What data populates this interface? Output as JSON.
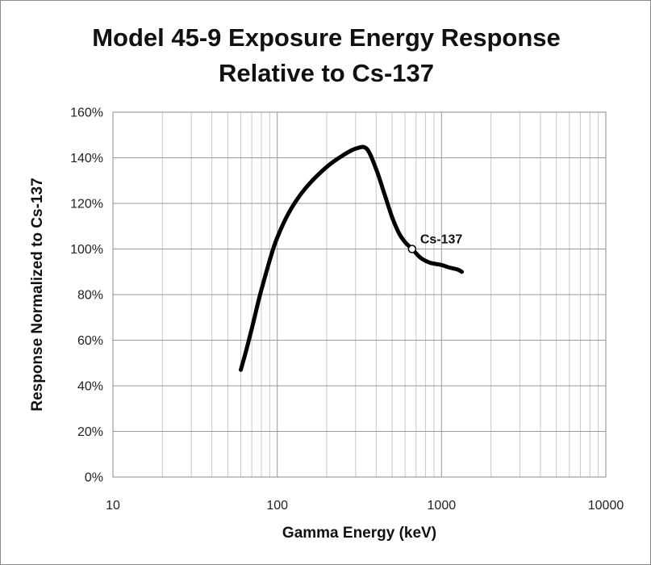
{
  "chart_data": {
    "type": "line",
    "title_lines": [
      "Model 45-9 Exposure Energy Response",
      "Relative to Cs-137"
    ],
    "xlabel": "Gamma Energy (keV)",
    "ylabel": "Response Normalized to Cs-137",
    "x_scale": "log",
    "xlim": [
      10,
      10000
    ],
    "ylim": [
      0,
      1.6
    ],
    "x_ticks": [
      {
        "value": 10,
        "label": "10"
      },
      {
        "value": 100,
        "label": "100"
      },
      {
        "value": 1000,
        "label": "1000"
      },
      {
        "value": 10000,
        "label": "10000"
      }
    ],
    "y_ticks": [
      {
        "value": 0.0,
        "label": "0%"
      },
      {
        "value": 0.2,
        "label": "20%"
      },
      {
        "value": 0.4,
        "label": "40%"
      },
      {
        "value": 0.6,
        "label": "60%"
      },
      {
        "value": 0.8,
        "label": "80%"
      },
      {
        "value": 1.0,
        "label": "100%"
      },
      {
        "value": 1.2,
        "label": "120%"
      },
      {
        "value": 1.4,
        "label": "140%"
      },
      {
        "value": 1.6,
        "label": "160%"
      }
    ],
    "grid": true,
    "series": [
      {
        "color": "#000000",
        "x": [
          60,
          65,
          70,
          75,
          80,
          90,
          100,
          120,
          150,
          200,
          250,
          300,
          350,
          400,
          450,
          500,
          550,
          600,
          662,
          750,
          850,
          1000,
          1100,
          1250,
          1330
        ],
        "y": [
          0.47,
          0.56,
          0.65,
          0.74,
          0.82,
          0.95,
          1.05,
          1.17,
          1.27,
          1.36,
          1.41,
          1.44,
          1.44,
          1.35,
          1.24,
          1.14,
          1.07,
          1.03,
          1.0,
          0.96,
          0.94,
          0.93,
          0.92,
          0.91,
          0.9
        ]
      }
    ],
    "annotations": [
      {
        "label": "Cs-137",
        "x": 662,
        "y": 1.0,
        "marker": "open-circle"
      }
    ]
  }
}
